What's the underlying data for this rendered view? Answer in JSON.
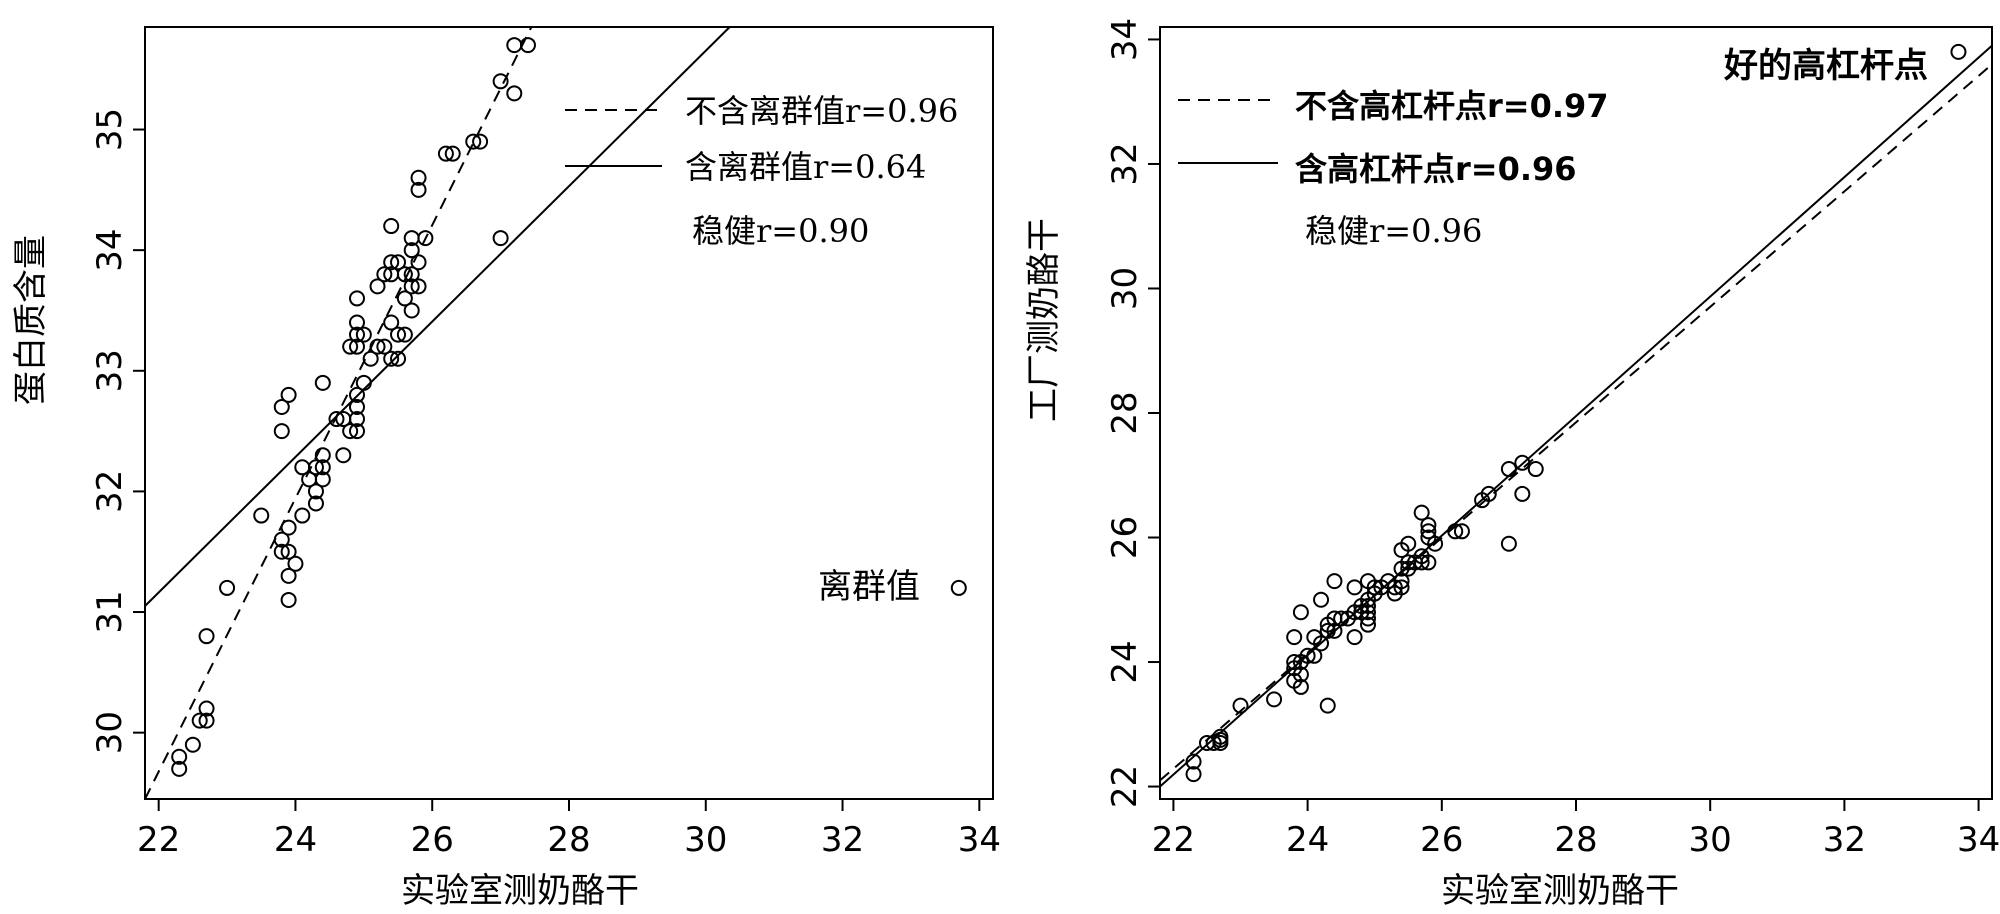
{
  "chart_data": [
    {
      "type": "scatter",
      "xlabel": "实验室测奶酪干",
      "ylabel": "蛋白质含量",
      "xlim": [
        21.8,
        34.2
      ],
      "ylim": [
        29.45,
        35.85
      ],
      "xticks": [
        22,
        24,
        26,
        28,
        30,
        32,
        34
      ],
      "yticks": [
        30,
        31,
        32,
        33,
        34,
        35
      ],
      "points": [
        [
          22.3,
          29.8
        ],
        [
          22.3,
          29.7
        ],
        [
          22.5,
          29.9
        ],
        [
          22.7,
          30.1
        ],
        [
          22.6,
          30.1
        ],
        [
          22.7,
          30.2
        ],
        [
          22.7,
          30.8
        ],
        [
          23.0,
          31.2
        ],
        [
          23.5,
          31.8
        ],
        [
          23.8,
          31.6
        ],
        [
          23.8,
          31.5
        ],
        [
          23.9,
          31.5
        ],
        [
          23.9,
          31.3
        ],
        [
          23.9,
          31.1
        ],
        [
          24.0,
          31.4
        ],
        [
          23.9,
          31.7
        ],
        [
          24.1,
          31.8
        ],
        [
          23.8,
          32.5
        ],
        [
          23.8,
          32.7
        ],
        [
          23.9,
          32.8
        ],
        [
          24.1,
          32.2
        ],
        [
          24.2,
          32.1
        ],
        [
          24.3,
          32.0
        ],
        [
          24.3,
          31.9
        ],
        [
          24.3,
          32.2
        ],
        [
          24.4,
          32.2
        ],
        [
          24.4,
          32.1
        ],
        [
          24.4,
          32.3
        ],
        [
          24.4,
          32.9
        ],
        [
          24.6,
          32.6
        ],
        [
          24.7,
          32.3
        ],
        [
          24.7,
          32.6
        ],
        [
          24.8,
          32.5
        ],
        [
          24.8,
          33.2
        ],
        [
          24.9,
          33.2
        ],
        [
          24.9,
          33.3
        ],
        [
          24.9,
          33.4
        ],
        [
          24.9,
          33.6
        ],
        [
          24.9,
          32.7
        ],
        [
          24.9,
          32.6
        ],
        [
          24.9,
          32.5
        ],
        [
          24.9,
          32.8
        ],
        [
          25.0,
          32.9
        ],
        [
          25.0,
          33.3
        ],
        [
          25.1,
          33.1
        ],
        [
          25.2,
          33.2
        ],
        [
          25.2,
          33.7
        ],
        [
          25.3,
          33.2
        ],
        [
          25.3,
          33.8
        ],
        [
          25.4,
          33.4
        ],
        [
          25.4,
          33.1
        ],
        [
          25.4,
          33.8
        ],
        [
          25.4,
          33.9
        ],
        [
          25.4,
          34.2
        ],
        [
          25.5,
          33.3
        ],
        [
          25.5,
          33.1
        ],
        [
          25.5,
          33.9
        ],
        [
          25.6,
          33.6
        ],
        [
          25.6,
          33.8
        ],
        [
          25.6,
          33.3
        ],
        [
          25.7,
          33.5
        ],
        [
          25.7,
          33.7
        ],
        [
          25.7,
          33.8
        ],
        [
          25.7,
          34.0
        ],
        [
          25.7,
          34.1
        ],
        [
          25.8,
          33.9
        ],
        [
          25.8,
          33.7
        ],
        [
          25.8,
          34.5
        ],
        [
          25.8,
          34.6
        ],
        [
          25.9,
          34.1
        ],
        [
          26.2,
          34.8
        ],
        [
          26.3,
          34.8
        ],
        [
          26.6,
          34.9
        ],
        [
          26.7,
          34.9
        ],
        [
          27.0,
          35.4
        ],
        [
          27.2,
          35.3
        ],
        [
          27.2,
          35.7
        ],
        [
          27.4,
          35.7
        ],
        [
          27.0,
          34.1
        ],
        [
          33.7,
          31.2
        ]
      ],
      "lines": [
        {
          "style": "dashed",
          "x": [
            21.8,
            27.45
          ],
          "y": [
            29.45,
            35.85
          ]
        },
        {
          "style": "solid",
          "x": [
            21.8,
            30.35
          ],
          "y": [
            31.05,
            35.85
          ]
        }
      ],
      "legend": [
        {
          "style": "dashed",
          "label": "不含离群值r=0.96"
        },
        {
          "style": "solid",
          "label": "含离群值r=0.64"
        },
        {
          "style": "none",
          "label": "稳健r=0.90"
        }
      ],
      "annotations": [
        {
          "text": "离群值",
          "x": 33.7,
          "y": 31.2
        }
      ]
    },
    {
      "type": "scatter",
      "xlabel": "实验室测奶酪干",
      "ylabel": "工厂测奶酪干",
      "xlim": [
        21.8,
        34.2
      ],
      "ylim": [
        21.8,
        34.2
      ],
      "xticks": [
        22,
        24,
        26,
        28,
        30,
        32,
        34
      ],
      "yticks": [
        22,
        24,
        26,
        28,
        30,
        32,
        34
      ],
      "points": [
        [
          22.3,
          22.4
        ],
        [
          22.3,
          22.2
        ],
        [
          22.5,
          22.7
        ],
        [
          22.6,
          22.7
        ],
        [
          22.7,
          22.7
        ],
        [
          22.7,
          22.8
        ],
        [
          22.7,
          22.75
        ],
        [
          23.0,
          23.3
        ],
        [
          23.5,
          23.4
        ],
        [
          23.8,
          23.7
        ],
        [
          23.8,
          23.9
        ],
        [
          23.8,
          24.0
        ],
        [
          23.8,
          24.4
        ],
        [
          23.9,
          23.8
        ],
        [
          23.9,
          23.6
        ],
        [
          23.9,
          24.0
        ],
        [
          23.9,
          24.8
        ],
        [
          24.0,
          24.1
        ],
        [
          24.1,
          24.1
        ],
        [
          24.1,
          24.4
        ],
        [
          24.2,
          24.3
        ],
        [
          24.2,
          25.0
        ],
        [
          24.3,
          23.3
        ],
        [
          24.3,
          24.5
        ],
        [
          24.3,
          24.6
        ],
        [
          24.4,
          24.5
        ],
        [
          24.4,
          24.7
        ],
        [
          24.4,
          25.3
        ],
        [
          24.5,
          24.7
        ],
        [
          24.6,
          24.7
        ],
        [
          24.7,
          24.4
        ],
        [
          24.7,
          24.8
        ],
        [
          24.7,
          25.2
        ],
        [
          24.8,
          24.9
        ],
        [
          24.8,
          24.8
        ],
        [
          24.9,
          24.6
        ],
        [
          24.9,
          24.7
        ],
        [
          24.9,
          24.8
        ],
        [
          24.9,
          24.9
        ],
        [
          24.9,
          25.0
        ],
        [
          24.9,
          25.3
        ],
        [
          25.0,
          25.1
        ],
        [
          25.0,
          25.2
        ],
        [
          25.1,
          25.2
        ],
        [
          25.2,
          25.3
        ],
        [
          25.3,
          25.1
        ],
        [
          25.3,
          25.2
        ],
        [
          25.4,
          25.2
        ],
        [
          25.4,
          25.3
        ],
        [
          25.4,
          25.5
        ],
        [
          25.4,
          25.8
        ],
        [
          25.5,
          25.5
        ],
        [
          25.5,
          25.6
        ],
        [
          25.5,
          25.9
        ],
        [
          25.6,
          25.6
        ],
        [
          25.7,
          25.6
        ],
        [
          25.7,
          25.7
        ],
        [
          25.7,
          26.4
        ],
        [
          25.8,
          25.6
        ],
        [
          25.8,
          26.0
        ],
        [
          25.8,
          26.1
        ],
        [
          25.8,
          26.2
        ],
        [
          25.9,
          25.9
        ],
        [
          26.2,
          26.1
        ],
        [
          26.3,
          26.1
        ],
        [
          26.6,
          26.6
        ],
        [
          26.7,
          26.7
        ],
        [
          27.0,
          27.1
        ],
        [
          27.0,
          25.9
        ],
        [
          27.2,
          26.7
        ],
        [
          27.2,
          27.2
        ],
        [
          27.4,
          27.1
        ],
        [
          33.7,
          33.8
        ]
      ],
      "lines": [
        {
          "style": "dashed",
          "x": [
            21.8,
            34.2
          ],
          "y": [
            22.1,
            33.6
          ]
        },
        {
          "style": "solid",
          "x": [
            21.8,
            34.2
          ],
          "y": [
            22.0,
            33.9
          ]
        }
      ],
      "legend": [
        {
          "style": "dashed",
          "label": "不含高杠杆点r=0.97"
        },
        {
          "style": "solid",
          "label": "含高杠杆点r=0.96"
        },
        {
          "style": "none",
          "label": "稳健r=0.96"
        }
      ],
      "annotations": [
        {
          "text": "好的高杠杆点",
          "x": 33.7,
          "y": 33.8
        }
      ]
    }
  ]
}
